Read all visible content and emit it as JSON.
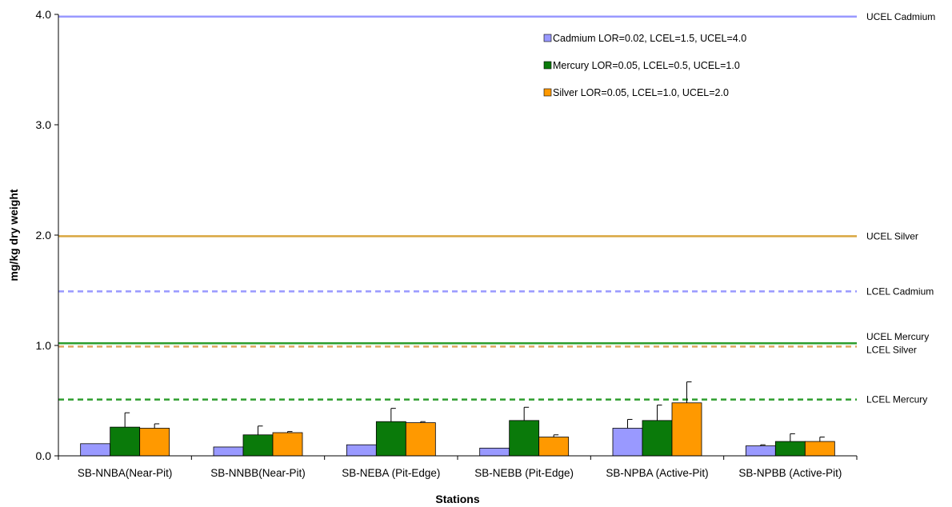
{
  "chart_data": {
    "type": "bar",
    "xlabel": "Stations",
    "ylabel": "mg/kg dry weight",
    "ylim": [
      0,
      4
    ],
    "yticks": [
      {
        "value": 0,
        "label": "0.0"
      },
      {
        "value": 1,
        "label": "1.0"
      },
      {
        "value": 2,
        "label": "2.0"
      },
      {
        "value": 3,
        "label": "3.0"
      },
      {
        "value": 4,
        "label": "4.0"
      }
    ],
    "categories": [
      "SB-NNBA(Near-Pit)",
      "SB-NNBB(Near-Pit)",
      "SB-NEBA (Pit-Edge)",
      "SB-NEBB (Pit-Edge)",
      "SB-NPBA (Active-Pit)",
      "SB-NPBB (Active-Pit)"
    ],
    "series": [
      {
        "name": "Cadmium LOR=0.02, LCEL=1.5, UCEL=4.0",
        "color": "#9999ff",
        "values": [
          0.11,
          0.08,
          0.1,
          0.07,
          0.25,
          0.09
        ],
        "errors": [
          0,
          0,
          0,
          0,
          0.08,
          0.01
        ]
      },
      {
        "name": "Mercury LOR=0.05, LCEL=0.5, UCEL=1.0",
        "color": "#0a7a0a",
        "values": [
          0.26,
          0.19,
          0.31,
          0.32,
          0.32,
          0.13
        ],
        "errors": [
          0.13,
          0.08,
          0.12,
          0.12,
          0.14,
          0.07
        ]
      },
      {
        "name": "Silver LOR=0.05, LCEL=1.0, UCEL=2.0",
        "color": "#ff9900",
        "values": [
          0.25,
          0.21,
          0.3,
          0.17,
          0.48,
          0.13
        ],
        "errors": [
          0.04,
          0.01,
          0.01,
          0.02,
          0.19,
          0.04
        ]
      }
    ],
    "reference_lines": [
      {
        "label": "UCEL Cadmium",
        "value": 3.98,
        "color": "#9999ff",
        "style": "solid"
      },
      {
        "label": "UCEL Silver",
        "value": 1.99,
        "color": "#d9a640",
        "style": "solid"
      },
      {
        "label": "LCEL Cadmium",
        "value": 1.49,
        "color": "#9999ff",
        "style": "dashed"
      },
      {
        "label": "UCEL Mercury",
        "value": 1.02,
        "color": "#2e9e2e",
        "style": "solid"
      },
      {
        "label": "LCEL Silver",
        "value": 0.99,
        "color": "#e0a860",
        "style": "dashed"
      },
      {
        "label": "LCEL Mercury",
        "value": 0.51,
        "color": "#2e9e2e",
        "style": "dashed"
      }
    ],
    "legend": "top-right",
    "grid": false
  }
}
